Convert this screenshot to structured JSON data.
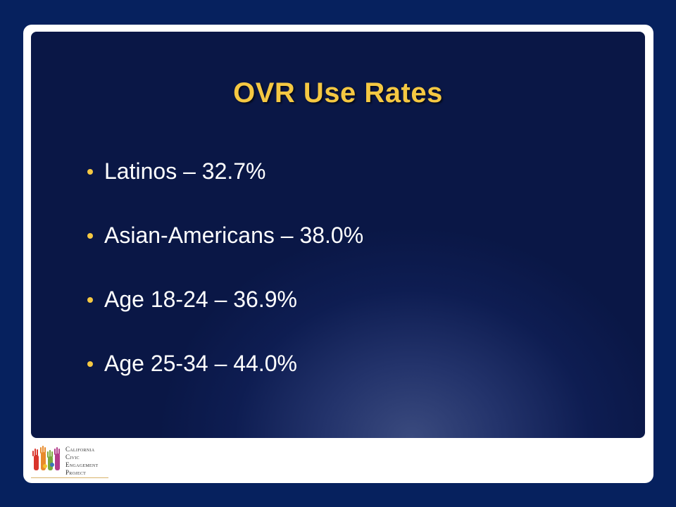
{
  "slide": {
    "title": "OVR Use Rates",
    "bullets": [
      "Latinos – 32.7%",
      "Asian-Americans – 38.0%",
      "Age 18-24 – 36.9%",
      "Age 25-34 – 44.0%"
    ]
  },
  "footer": {
    "logo_lines": [
      "California",
      "Civic",
      "Engagement",
      "Project"
    ]
  },
  "colors": {
    "background": "#06215e",
    "title": "#f5c842",
    "bullet_dot": "#f5c842",
    "text": "#ffffff"
  }
}
